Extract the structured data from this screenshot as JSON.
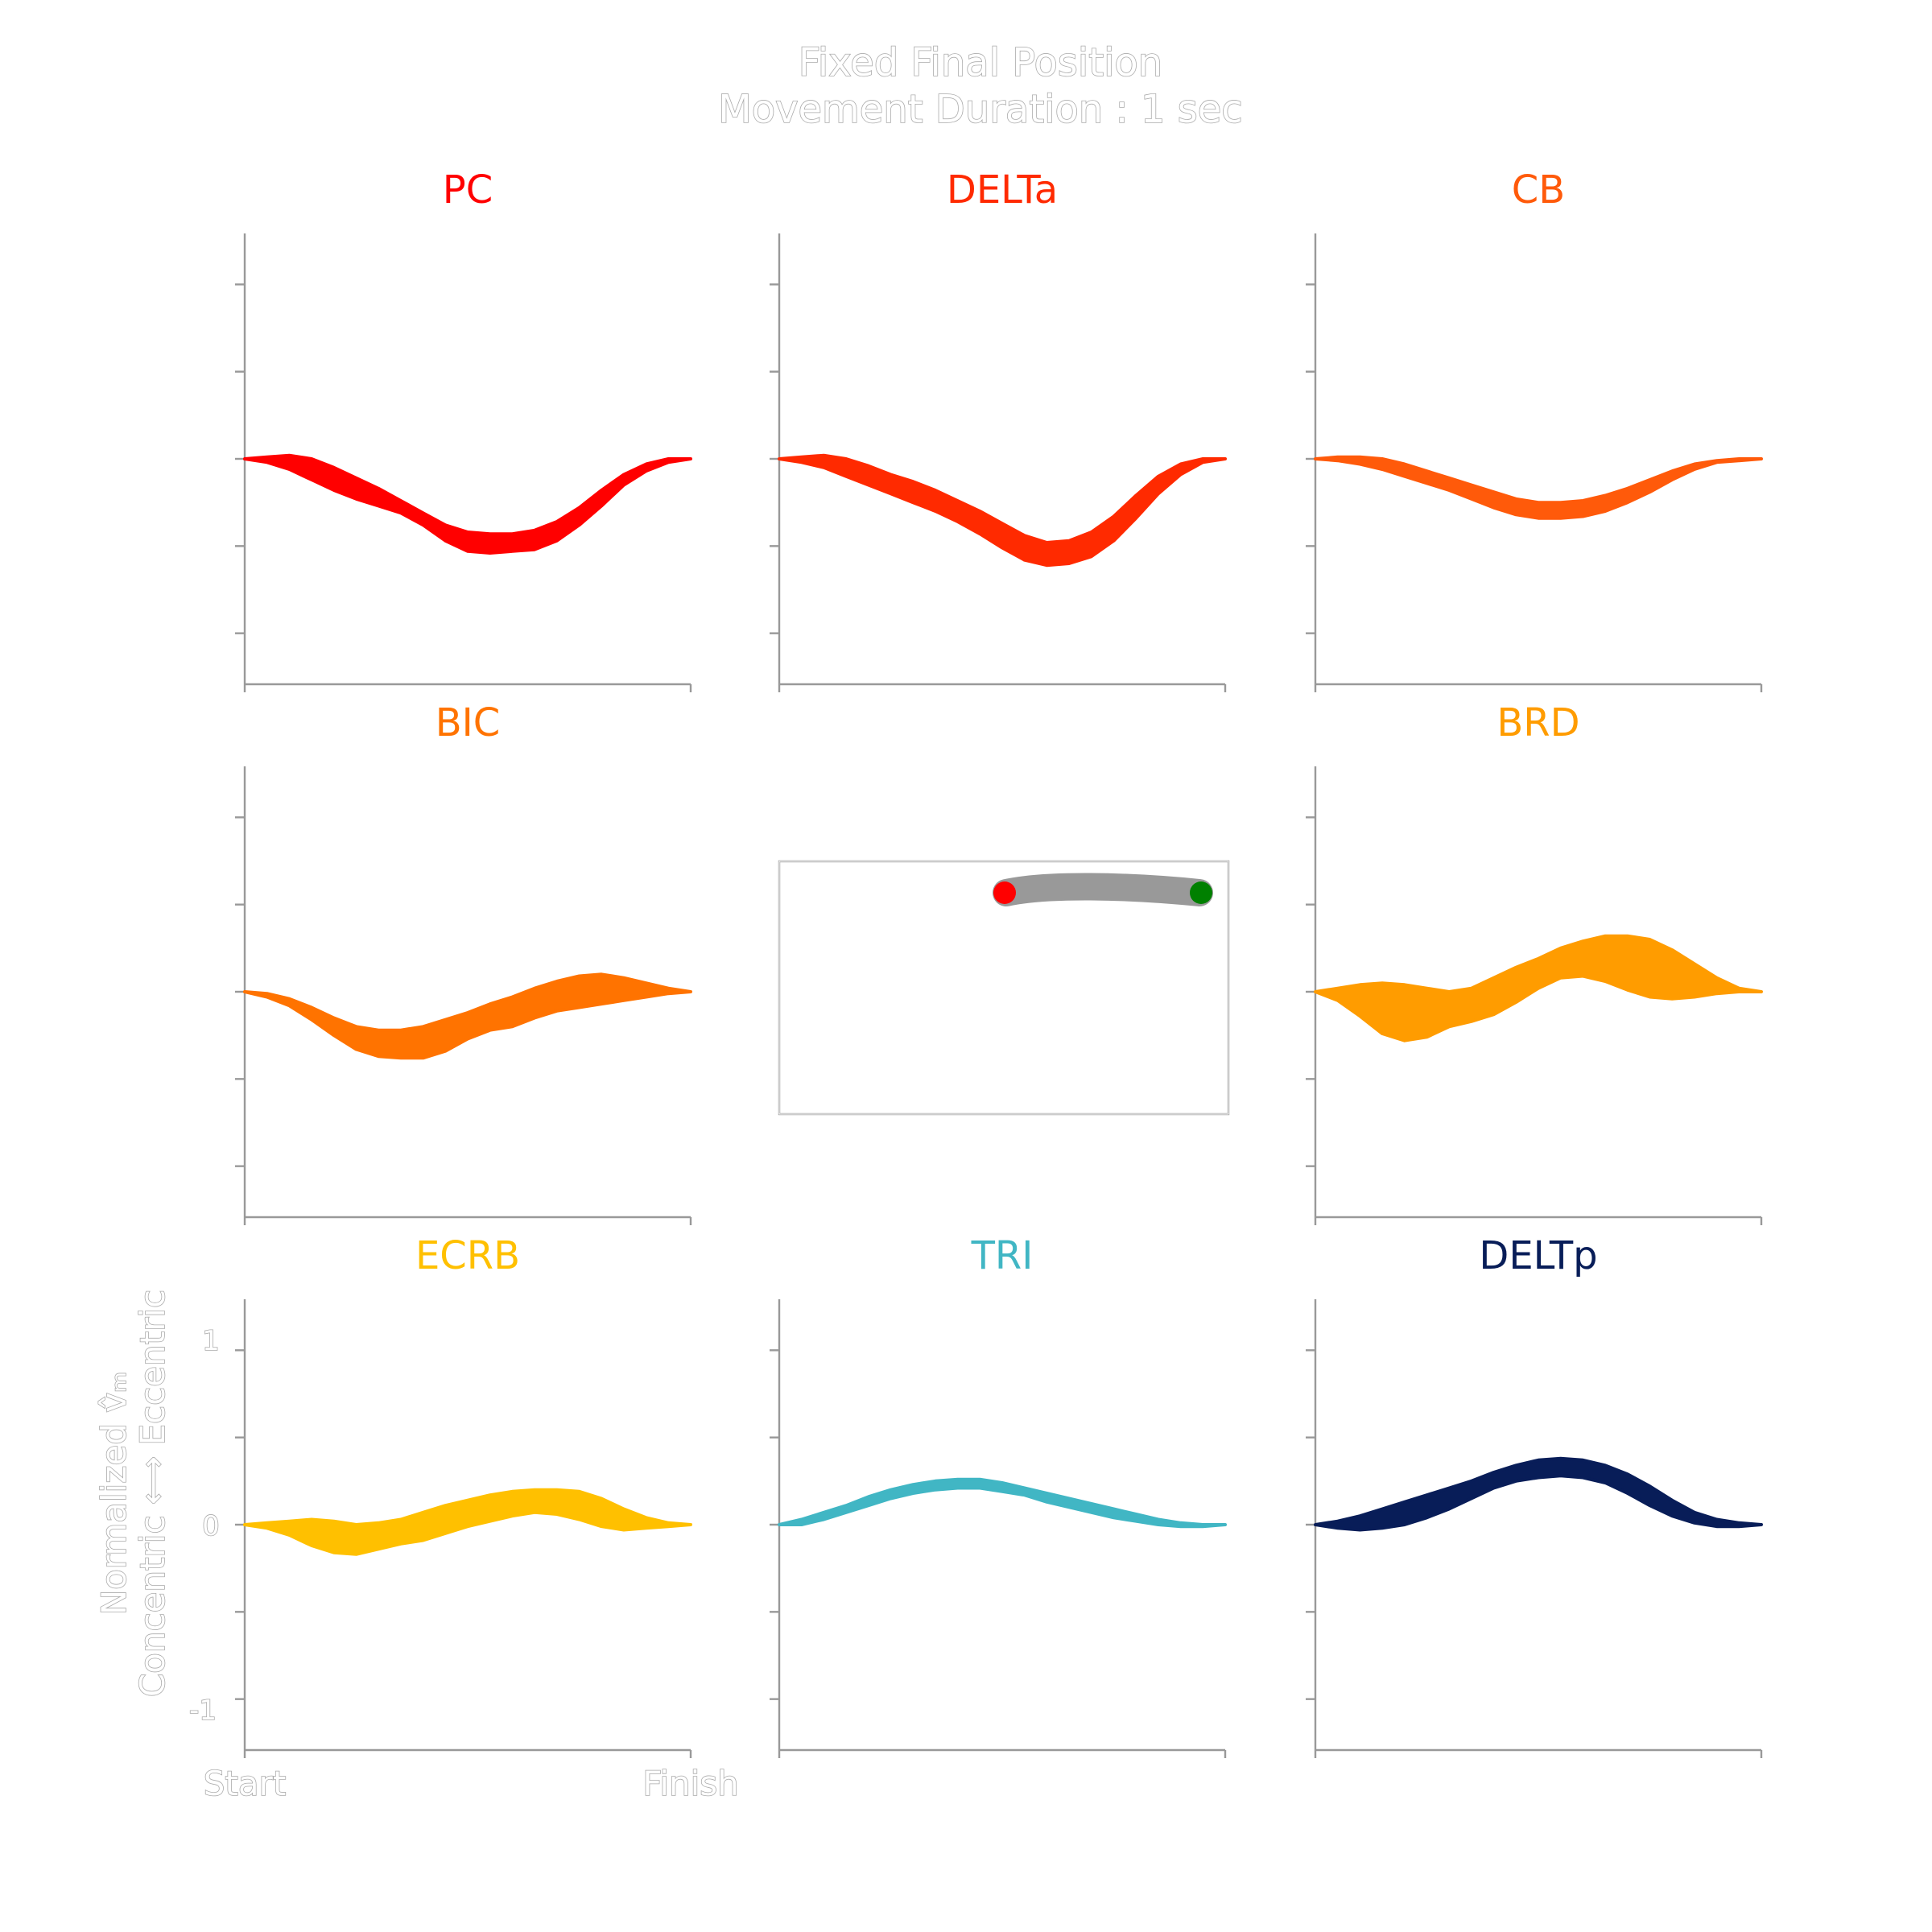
{
  "figure": {
    "title_line1": "Fixed Final Position",
    "title_line2": "Movement Duration : 1 sec"
  },
  "chart_data": [
    {
      "type": "area",
      "title": "PC",
      "color": "#ff0000",
      "ylim": [
        -1.2,
        1.2
      ],
      "x": [
        0,
        0.05,
        0.1,
        0.15,
        0.2,
        0.25,
        0.3,
        0.35,
        0.4,
        0.45,
        0.5,
        0.55,
        0.6,
        0.65,
        0.7,
        0.75,
        0.8,
        0.85,
        0.9,
        0.95,
        1.0
      ],
      "upper": [
        0,
        0.01,
        0.02,
        0.0,
        -0.05,
        -0.11,
        -0.17,
        -0.24,
        -0.31,
        -0.38,
        -0.42,
        -0.43,
        -0.43,
        -0.41,
        -0.36,
        -0.28,
        -0.18,
        -0.09,
        -0.03,
        0.0,
        0
      ],
      "lower": [
        0,
        -0.02,
        -0.06,
        -0.12,
        -0.18,
        -0.23,
        -0.27,
        -0.31,
        -0.38,
        -0.47,
        -0.53,
        -0.54,
        -0.53,
        -0.52,
        -0.47,
        -0.38,
        -0.27,
        -0.15,
        -0.07,
        -0.02,
        0
      ]
    },
    {
      "type": "area",
      "title": "DELTa",
      "color": "#ff2a00",
      "ylim": [
        -1.2,
        1.2
      ],
      "x": [
        0,
        0.05,
        0.1,
        0.15,
        0.2,
        0.25,
        0.3,
        0.35,
        0.4,
        0.45,
        0.5,
        0.55,
        0.6,
        0.65,
        0.7,
        0.75,
        0.8,
        0.85,
        0.9,
        0.95,
        1.0
      ],
      "upper": [
        0,
        0.01,
        0.02,
        0.0,
        -0.04,
        -0.09,
        -0.13,
        -0.18,
        -0.24,
        -0.3,
        -0.37,
        -0.44,
        -0.48,
        -0.47,
        -0.42,
        -0.33,
        -0.21,
        -0.1,
        -0.03,
        0.0,
        0
      ],
      "lower": [
        0,
        -0.02,
        -0.05,
        -0.1,
        -0.15,
        -0.2,
        -0.25,
        -0.3,
        -0.36,
        -0.43,
        -0.51,
        -0.58,
        -0.61,
        -0.6,
        -0.56,
        -0.47,
        -0.34,
        -0.2,
        -0.09,
        -0.02,
        0
      ]
    },
    {
      "type": "area",
      "title": "CB",
      "color": "#ff5a0a",
      "ylim": [
        -1.2,
        1.2
      ],
      "x": [
        0,
        0.05,
        0.1,
        0.15,
        0.2,
        0.25,
        0.3,
        0.35,
        0.4,
        0.45,
        0.5,
        0.55,
        0.6,
        0.65,
        0.7,
        0.75,
        0.8,
        0.85,
        0.9,
        0.95,
        1.0
      ],
      "upper": [
        0,
        0.01,
        0.01,
        0.0,
        -0.03,
        -0.07,
        -0.11,
        -0.15,
        -0.19,
        -0.23,
        -0.25,
        -0.25,
        -0.24,
        -0.21,
        -0.17,
        -0.12,
        -0.07,
        -0.03,
        -0.01,
        0.0,
        0
      ],
      "lower": [
        0,
        -0.01,
        -0.03,
        -0.06,
        -0.1,
        -0.14,
        -0.18,
        -0.23,
        -0.28,
        -0.32,
        -0.34,
        -0.34,
        -0.33,
        -0.3,
        -0.25,
        -0.19,
        -0.12,
        -0.06,
        -0.02,
        -0.01,
        0
      ]
    },
    {
      "type": "area",
      "title": "BIC",
      "color": "#ff7300",
      "ylim": [
        -1.2,
        1.2
      ],
      "x": [
        0,
        0.05,
        0.1,
        0.15,
        0.2,
        0.25,
        0.3,
        0.35,
        0.4,
        0.45,
        0.5,
        0.55,
        0.6,
        0.65,
        0.7,
        0.75,
        0.8,
        0.85,
        0.9,
        0.95,
        1.0
      ],
      "upper": [
        0,
        -0.01,
        -0.04,
        -0.09,
        -0.15,
        -0.2,
        -0.22,
        -0.22,
        -0.2,
        -0.16,
        -0.12,
        -0.07,
        -0.03,
        0.02,
        0.06,
        0.09,
        0.1,
        0.08,
        0.05,
        0.02,
        0
      ],
      "lower": [
        0,
        -0.03,
        -0.08,
        -0.16,
        -0.25,
        -0.33,
        -0.37,
        -0.38,
        -0.38,
        -0.34,
        -0.27,
        -0.22,
        -0.2,
        -0.15,
        -0.11,
        -0.09,
        -0.07,
        -0.05,
        -0.03,
        -0.01,
        0
      ]
    },
    {
      "type": "area",
      "title": "BRD",
      "color": "#ff9c00",
      "ylim": [
        -1.2,
        1.2
      ],
      "x": [
        0,
        0.05,
        0.1,
        0.15,
        0.2,
        0.25,
        0.3,
        0.35,
        0.4,
        0.45,
        0.5,
        0.55,
        0.6,
        0.65,
        0.7,
        0.75,
        0.8,
        0.85,
        0.9,
        0.95,
        1.0
      ],
      "upper": [
        0,
        0.02,
        0.04,
        0.05,
        0.04,
        0.02,
        0.0,
        0.02,
        0.08,
        0.14,
        0.19,
        0.25,
        0.29,
        0.32,
        0.32,
        0.3,
        0.24,
        0.16,
        0.08,
        0.02,
        0
      ],
      "lower": [
        0,
        -0.05,
        -0.14,
        -0.24,
        -0.28,
        -0.26,
        -0.2,
        -0.17,
        -0.13,
        -0.06,
        0.02,
        0.08,
        0.09,
        0.06,
        0.01,
        -0.03,
        -0.04,
        -0.03,
        -0.01,
        0.0,
        0
      ]
    },
    {
      "type": "area",
      "title": "ECRB",
      "color": "#ffc000",
      "ylim": [
        -1.2,
        1.2
      ],
      "x": [
        0,
        0.05,
        0.1,
        0.15,
        0.2,
        0.25,
        0.3,
        0.35,
        0.4,
        0.45,
        0.5,
        0.55,
        0.6,
        0.65,
        0.7,
        0.75,
        0.8,
        0.85,
        0.9,
        0.95,
        1.0
      ],
      "upper": [
        0,
        0.01,
        0.02,
        0.03,
        0.02,
        0.0,
        0.01,
        0.03,
        0.07,
        0.11,
        0.14,
        0.17,
        0.19,
        0.2,
        0.2,
        0.19,
        0.15,
        0.09,
        0.04,
        0.01,
        0
      ],
      "lower": [
        0,
        -0.02,
        -0.06,
        -0.12,
        -0.16,
        -0.17,
        -0.14,
        -0.11,
        -0.09,
        -0.05,
        -0.01,
        0.02,
        0.05,
        0.07,
        0.06,
        0.03,
        -0.01,
        -0.03,
        -0.02,
        -0.01,
        0
      ]
    },
    {
      "type": "area",
      "title": "TRI",
      "color": "#41b6c4",
      "ylim": [
        -1.2,
        1.2
      ],
      "x": [
        0,
        0.05,
        0.1,
        0.15,
        0.2,
        0.25,
        0.3,
        0.35,
        0.4,
        0.45,
        0.5,
        0.55,
        0.6,
        0.65,
        0.7,
        0.75,
        0.8,
        0.85,
        0.9,
        0.95,
        1.0
      ],
      "upper": [
        0,
        0.03,
        0.07,
        0.11,
        0.16,
        0.2,
        0.23,
        0.25,
        0.26,
        0.26,
        0.24,
        0.21,
        0.18,
        0.15,
        0.12,
        0.09,
        0.06,
        0.03,
        0.01,
        0.0,
        0
      ],
      "lower": [
        0,
        0.0,
        0.03,
        0.07,
        0.11,
        0.15,
        0.18,
        0.2,
        0.21,
        0.21,
        0.19,
        0.17,
        0.13,
        0.1,
        0.07,
        0.04,
        0.02,
        0.0,
        -0.01,
        -0.01,
        0
      ]
    },
    {
      "type": "area",
      "title": "DELTp",
      "color": "#081d58",
      "ylim": [
        -1.2,
        1.2
      ],
      "x": [
        0,
        0.05,
        0.1,
        0.15,
        0.2,
        0.25,
        0.3,
        0.35,
        0.4,
        0.45,
        0.5,
        0.55,
        0.6,
        0.65,
        0.7,
        0.75,
        0.8,
        0.85,
        0.9,
        0.95,
        1.0
      ],
      "upper": [
        0,
        0.02,
        0.05,
        0.09,
        0.13,
        0.17,
        0.21,
        0.25,
        0.3,
        0.34,
        0.37,
        0.38,
        0.37,
        0.34,
        0.29,
        0.22,
        0.14,
        0.07,
        0.03,
        0.01,
        0
      ],
      "lower": [
        0,
        -0.02,
        -0.03,
        -0.02,
        0.0,
        0.04,
        0.09,
        0.15,
        0.21,
        0.25,
        0.27,
        0.28,
        0.27,
        0.24,
        0.18,
        0.11,
        0.05,
        0.01,
        -0.01,
        -0.01,
        0
      ]
    }
  ],
  "axes_labels": {
    "ylabel_line1": "Normalized v̂ₘ",
    "ylabel_line2": "Concentric ⟷ Eccentric",
    "ytick_pos": "1",
    "ytick_zero": "0",
    "ytick_neg": "-1",
    "xtick_start": "Start",
    "xtick_finish": "Finish"
  },
  "inset": {
    "start_color": "#008000",
    "end_color": "#ff0000",
    "path_color": "#999999"
  }
}
